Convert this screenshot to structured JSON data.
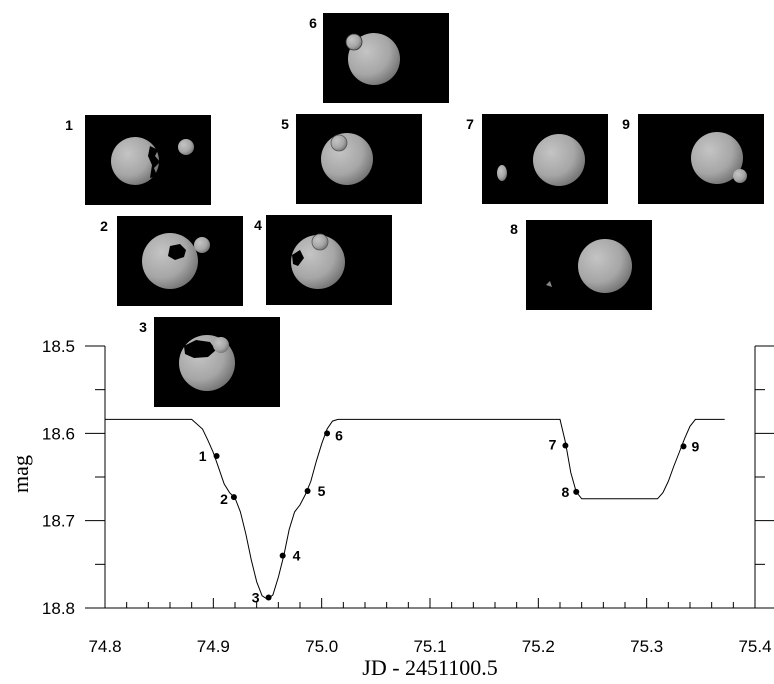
{
  "chart_data": {
    "type": "line",
    "xlabel": "JD - 2451100.5",
    "ylabel": "mag",
    "xlim": [
      74.8,
      75.4
    ],
    "ylim": [
      18.8,
      18.5
    ],
    "y_inverted": true,
    "x_ticks": [
      "74.8",
      "74.9",
      "75.0",
      "75.1",
      "75.2",
      "75.3",
      "75.4"
    ],
    "y_ticks": [
      "18.5",
      "18.6",
      "18.7",
      "18.8"
    ],
    "curve": {
      "x": [
        74.8,
        74.88,
        74.89,
        74.895,
        74.9,
        74.905,
        74.91,
        74.915,
        74.92,
        74.925,
        74.93,
        74.935,
        74.94,
        74.945,
        74.95,
        74.955,
        74.96,
        74.965,
        74.97,
        74.975,
        74.98,
        74.985,
        74.99,
        74.995,
        75.0,
        75.005,
        75.01,
        75.015,
        75.22,
        75.225,
        75.23,
        75.235,
        75.24,
        75.31,
        75.315,
        75.32,
        75.325,
        75.33,
        75.335,
        75.34,
        75.345,
        75.372
      ],
      "y": [
        18.584,
        18.584,
        18.595,
        18.608,
        18.622,
        18.64,
        18.658,
        18.668,
        18.674,
        18.69,
        18.715,
        18.745,
        18.77,
        18.786,
        18.79,
        18.785,
        18.765,
        18.74,
        18.71,
        18.69,
        18.682,
        18.67,
        18.655,
        18.632,
        18.612,
        18.595,
        18.586,
        18.584,
        18.584,
        18.61,
        18.645,
        18.667,
        18.675,
        18.675,
        18.668,
        18.655,
        18.638,
        18.622,
        18.606,
        18.592,
        18.584,
        18.584
      ]
    },
    "points": [
      {
        "label": "1",
        "x": 74.903,
        "y": 18.626
      },
      {
        "label": "2",
        "x": 74.919,
        "y": 18.673
      },
      {
        "label": "3",
        "x": 74.951,
        "y": 18.788
      },
      {
        "label": "4",
        "x": 74.964,
        "y": 18.74
      },
      {
        "label": "5",
        "x": 74.987,
        "y": 18.666
      },
      {
        "label": "6",
        "x": 75.005,
        "y": 18.6
      },
      {
        "label": "7",
        "x": 75.225,
        "y": 18.614
      },
      {
        "label": "8",
        "x": 75.235,
        "y": 18.667
      },
      {
        "label": "9",
        "x": 75.334,
        "y": 18.615
      }
    ]
  },
  "phase_panels": [
    {
      "label": "1"
    },
    {
      "label": "2"
    },
    {
      "label": "3"
    },
    {
      "label": "4"
    },
    {
      "label": "5"
    },
    {
      "label": "6"
    },
    {
      "label": "7"
    },
    {
      "label": "8"
    },
    {
      "label": "9"
    }
  ]
}
